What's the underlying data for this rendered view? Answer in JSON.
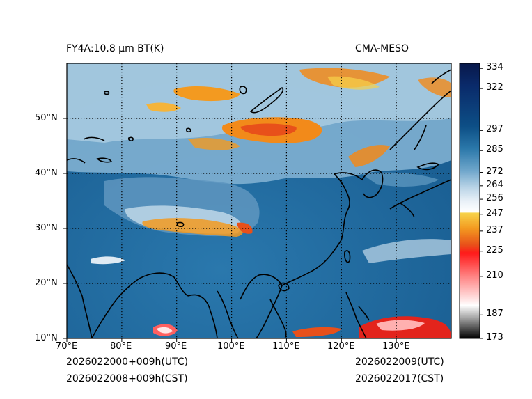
{
  "header": {
    "title_left": "FY4A:10.8 µm BT(K)",
    "title_right": "CMA-MESO"
  },
  "footer": {
    "init_utc": "2026022000+009h(UTC)",
    "init_cst": "2026022008+009h(CST)",
    "valid_utc": "2026022009(UTC)",
    "valid_cst": "2026022017(CST)"
  },
  "axes": {
    "x_ticks": [
      "70°E",
      "80°E",
      "90°E",
      "100°E",
      "110°E",
      "120°E",
      "130°E"
    ],
    "y_ticks": [
      "10°N",
      "20°N",
      "30°N",
      "40°N",
      "50°N"
    ],
    "lon_range": [
      70,
      140
    ],
    "lat_range": [
      10,
      60
    ]
  },
  "colorbar": {
    "range": [
      173,
      337
    ],
    "tick_labels": [
      "334",
      "322",
      "297",
      "285",
      "272",
      "264",
      "256",
      "247",
      "237",
      "225",
      "210",
      "187",
      "173"
    ],
    "tick_values": [
      334,
      322,
      297,
      285,
      272,
      264,
      256,
      247,
      237,
      225,
      210,
      187,
      173
    ]
  },
  "colors": {
    "frame": "#000000",
    "coast": "#000000",
    "warm_ocean": "#1a5f93",
    "mid": "#3f87b8",
    "cool": "#9fc3da",
    "cloud_orange": "#f28a1a",
    "cold_red": "#e3241c"
  }
}
